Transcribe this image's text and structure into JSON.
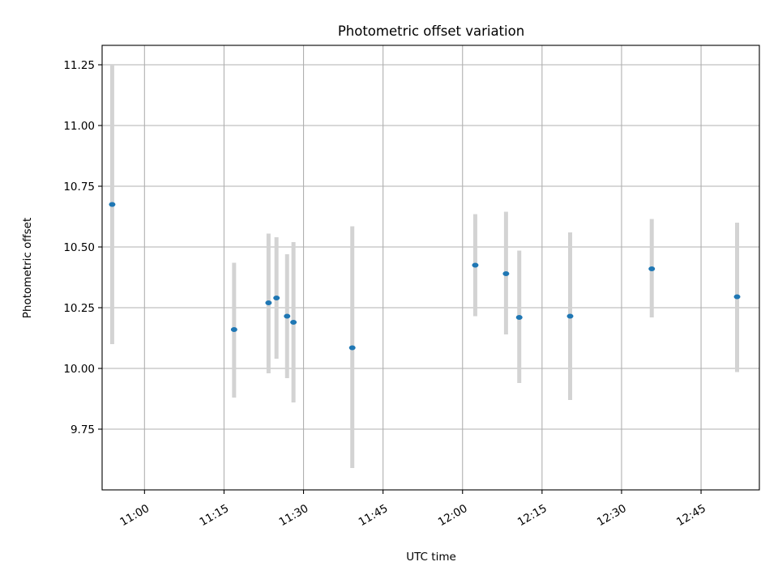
{
  "chart_data": {
    "type": "scatter",
    "title": "Photometric offset variation",
    "xlabel": "UTC time",
    "ylabel": "Photometric offset",
    "x_axis": {
      "unit": "minutes of day, UTC",
      "range": [
        "10:52",
        "12:56"
      ],
      "ticks": [
        "11:00",
        "11:15",
        "11:30",
        "11:45",
        "12:00",
        "12:15",
        "12:30",
        "12:45"
      ],
      "tick_label_rotation": 30
    },
    "y_axis": {
      "range": [
        9.5,
        11.33
      ],
      "ticks": [
        "9.75",
        "10.00",
        "10.25",
        "10.50",
        "10.75",
        "11.00",
        "11.25"
      ]
    },
    "grid": true,
    "legend": "none",
    "colors": {
      "point": "#1f77b4",
      "errorbar": "#d3d3d3"
    },
    "points": [
      {
        "x": "10:53.9",
        "y": 10.675,
        "ymin": 10.1,
        "ymax": 11.25
      },
      {
        "x": "11:16.9",
        "y": 10.16,
        "ymin": 9.88,
        "ymax": 10.435
      },
      {
        "x": "11:23.4",
        "y": 10.27,
        "ymin": 9.98,
        "ymax": 10.555
      },
      {
        "x": "11:24.9",
        "y": 10.29,
        "ymin": 10.04,
        "ymax": 10.54
      },
      {
        "x": "11:26.9",
        "y": 10.215,
        "ymin": 9.96,
        "ymax": 10.47
      },
      {
        "x": "11:28.1",
        "y": 10.19,
        "ymin": 9.86,
        "ymax": 10.52
      },
      {
        "x": "11:39.2",
        "y": 10.085,
        "ymin": 9.59,
        "ymax": 10.585
      },
      {
        "x": "12:02.4",
        "y": 10.425,
        "ymin": 10.215,
        "ymax": 10.635
      },
      {
        "x": "12:08.2",
        "y": 10.39,
        "ymin": 10.14,
        "ymax": 10.645
      },
      {
        "x": "12:10.7",
        "y": 10.21,
        "ymin": 9.94,
        "ymax": 10.485
      },
      {
        "x": "12:20.3",
        "y": 10.215,
        "ymin": 9.87,
        "ymax": 10.56
      },
      {
        "x": "12:35.7",
        "y": 10.41,
        "ymin": 10.21,
        "ymax": 10.615
      },
      {
        "x": "12:51.8",
        "y": 10.295,
        "ymin": 9.985,
        "ymax": 10.6
      }
    ]
  }
}
